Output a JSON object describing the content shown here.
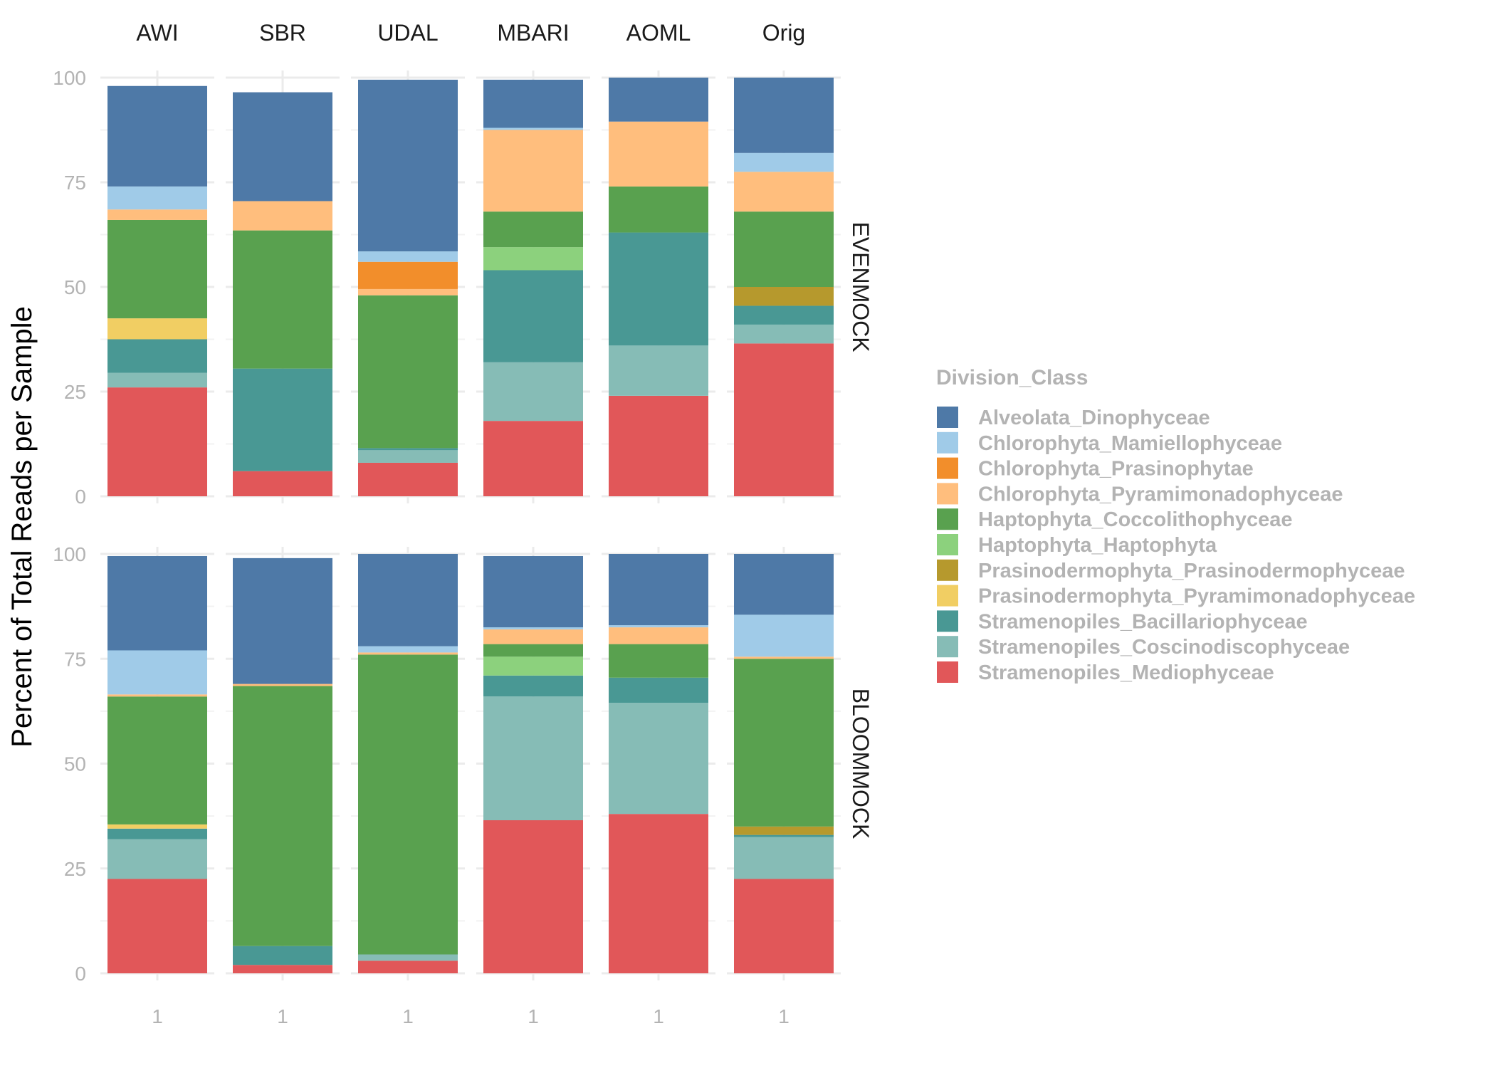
{
  "chart_data": {
    "type": "bar",
    "stacked": true,
    "ylabel": "Percent of Total Reads per Sample",
    "ylim": [
      0,
      100
    ],
    "y_ticks": [
      "0",
      "25",
      "50",
      "75",
      "100"
    ],
    "x_tick_label": "1",
    "grid": true,
    "legend_position": "right",
    "legend_title": "Division_Class",
    "column_facets": [
      "AWI",
      "SBR",
      "UDAL",
      "MBARI",
      "AOML",
      "Orig"
    ],
    "row_facets": [
      "EVENMOCK",
      "BLOOMMOCK"
    ],
    "classes": [
      {
        "name": "Alveolata_Dinophyceae",
        "color": "#4e79a7"
      },
      {
        "name": "Chlorophyta_Mamiellophyceae",
        "color": "#a0cbe8"
      },
      {
        "name": "Chlorophyta_Prasinophytae",
        "color": "#f28e2b"
      },
      {
        "name": "Chlorophyta_Pyramimonadophyceae",
        "color": "#ffbe7d"
      },
      {
        "name": "Haptophyta_Coccolithophyceae",
        "color": "#59a14f"
      },
      {
        "name": "Haptophyta_Haptophyta",
        "color": "#8cd17d"
      },
      {
        "name": "Prasinodermophyta_Prasinodermophyceae",
        "color": "#b6992d"
      },
      {
        "name": "Prasinodermophyta_Pyramimonadophyceae",
        "color": "#f1ce63"
      },
      {
        "name": "Stramenopiles_Bacillariophyceae",
        "color": "#499894"
      },
      {
        "name": "Stramenopiles_Coscinodiscophyceae",
        "color": "#86bcb6"
      },
      {
        "name": "Stramenopiles_Mediophyceae",
        "color": "#e15759"
      }
    ],
    "stack_order_bottom_to_top": [
      "Stramenopiles_Mediophyceae",
      "Stramenopiles_Coscinodiscophyceae",
      "Stramenopiles_Bacillariophyceae",
      "Prasinodermophyta_Pyramimonadophyceae",
      "Prasinodermophyta_Prasinodermophyceae",
      "Haptophyta_Haptophyta",
      "Haptophyta_Coccolithophyceae",
      "Chlorophyta_Pyramimonadophyceae",
      "Chlorophyta_Prasinophytae",
      "Chlorophyta_Mamiellophyceae",
      "Alveolata_Dinophyceae"
    ],
    "values": {
      "EVENMOCK": {
        "AWI": {
          "Stramenopiles_Mediophyceae": 26.0,
          "Stramenopiles_Coscinodiscophyceae": 3.5,
          "Stramenopiles_Bacillariophyceae": 8.0,
          "Prasinodermophyta_Pyramimonadophyceae": 5.0,
          "Haptophyta_Coccolithophyceae": 23.5,
          "Chlorophyta_Pyramimonadophyceae": 2.5,
          "Chlorophyta_Mamiellophyceae": 5.5,
          "Alveolata_Dinophyceae": 24.0
        },
        "SBR": {
          "Stramenopiles_Mediophyceae": 6.0,
          "Stramenopiles_Bacillariophyceae": 24.5,
          "Haptophyta_Coccolithophyceae": 33.0,
          "Chlorophyta_Pyramimonadophyceae": 7.0,
          "Alveolata_Dinophyceae": 26.0
        },
        "UDAL": {
          "Stramenopiles_Mediophyceae": 8.0,
          "Stramenopiles_Coscinodiscophyceae": 3.0,
          "Stramenopiles_Bacillariophyceae": 0.5,
          "Haptophyta_Coccolithophyceae": 36.5,
          "Chlorophyta_Pyramimonadophyceae": 1.5,
          "Chlorophyta_Prasinophytae": 6.5,
          "Chlorophyta_Mamiellophyceae": 2.5,
          "Alveolata_Dinophyceae": 41.0
        },
        "MBARI": {
          "Stramenopiles_Mediophyceae": 18.0,
          "Stramenopiles_Coscinodiscophyceae": 14.0,
          "Stramenopiles_Bacillariophyceae": 22.0,
          "Haptophyta_Haptophyta": 5.5,
          "Haptophyta_Coccolithophyceae": 8.5,
          "Chlorophyta_Pyramimonadophyceae": 19.5,
          "Chlorophyta_Mamiellophyceae": 0.5,
          "Alveolata_Dinophyceae": 11.5
        },
        "AOML": {
          "Stramenopiles_Mediophyceae": 24.0,
          "Stramenopiles_Coscinodiscophyceae": 12.0,
          "Stramenopiles_Bacillariophyceae": 27.0,
          "Haptophyta_Coccolithophyceae": 11.0,
          "Chlorophyta_Pyramimonadophyceae": 15.5,
          "Alveolata_Dinophyceae": 10.5
        },
        "Orig": {
          "Stramenopiles_Mediophyceae": 36.5,
          "Stramenopiles_Coscinodiscophyceae": 4.5,
          "Stramenopiles_Bacillariophyceae": 4.5,
          "Prasinodermophyta_Prasinodermophyceae": 4.5,
          "Haptophyta_Coccolithophyceae": 18.0,
          "Chlorophyta_Pyramimonadophyceae": 9.5,
          "Chlorophyta_Mamiellophyceae": 4.5,
          "Alveolata_Dinophyceae": 18.0
        }
      },
      "BLOOMMOCK": {
        "AWI": {
          "Stramenopiles_Mediophyceae": 22.5,
          "Stramenopiles_Coscinodiscophyceae": 9.5,
          "Stramenopiles_Bacillariophyceae": 2.5,
          "Prasinodermophyta_Pyramimonadophyceae": 1.0,
          "Haptophyta_Coccolithophyceae": 30.5,
          "Chlorophyta_Pyramimonadophyceae": 0.5,
          "Chlorophyta_Mamiellophyceae": 10.5,
          "Alveolata_Dinophyceae": 22.5
        },
        "SBR": {
          "Stramenopiles_Mediophyceae": 2.0,
          "Stramenopiles_Bacillariophyceae": 4.5,
          "Haptophyta_Coccolithophyceae": 62.0,
          "Chlorophyta_Pyramimonadophyceae": 0.5,
          "Alveolata_Dinophyceae": 30.0
        },
        "UDAL": {
          "Stramenopiles_Mediophyceae": 3.0,
          "Stramenopiles_Coscinodiscophyceae": 1.5,
          "Haptophyta_Coccolithophyceae": 71.5,
          "Chlorophyta_Pyramimonadophyceae": 0.5,
          "Chlorophyta_Mamiellophyceae": 1.5,
          "Alveolata_Dinophyceae": 22.0
        },
        "MBARI": {
          "Stramenopiles_Mediophyceae": 36.5,
          "Stramenopiles_Coscinodiscophyceae": 29.5,
          "Stramenopiles_Bacillariophyceae": 5.0,
          "Haptophyta_Haptophyta": 4.5,
          "Haptophyta_Coccolithophyceae": 3.0,
          "Chlorophyta_Pyramimonadophyceae": 3.5,
          "Chlorophyta_Mamiellophyceae": 0.5,
          "Alveolata_Dinophyceae": 17.0
        },
        "AOML": {
          "Stramenopiles_Mediophyceae": 38.0,
          "Stramenopiles_Coscinodiscophyceae": 26.5,
          "Stramenopiles_Bacillariophyceae": 6.0,
          "Haptophyta_Coccolithophyceae": 8.0,
          "Chlorophyta_Pyramimonadophyceae": 4.0,
          "Chlorophyta_Mamiellophyceae": 0.5,
          "Alveolata_Dinophyceae": 17.0
        },
        "Orig": {
          "Stramenopiles_Mediophyceae": 22.5,
          "Stramenopiles_Coscinodiscophyceae": 10.0,
          "Stramenopiles_Bacillariophyceae": 0.5,
          "Prasinodermophyta_Prasinodermophyceae": 2.0,
          "Haptophyta_Coccolithophyceae": 40.0,
          "Chlorophyta_Pyramimonadophyceae": 0.5,
          "Chlorophyta_Mamiellophyceae": 10.0,
          "Alveolata_Dinophyceae": 14.5
        }
      }
    }
  }
}
